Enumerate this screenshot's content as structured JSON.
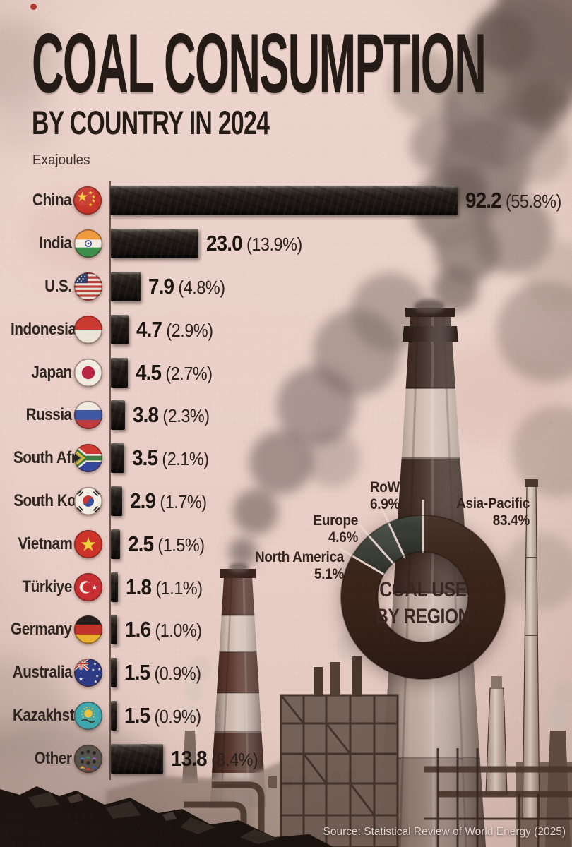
{
  "header": {
    "title": "COAL CONSUMPTION",
    "subtitle": "BY COUNTRY IN 2024",
    "units_label": "Exajoules"
  },
  "source": "Source: Statistical Review of World Energy (2025)",
  "colors": {
    "paper": "#e9cfc7",
    "ink": "#241b16",
    "bar_coal": "#1c1713",
    "separator": "#e8d6ce",
    "source_text": "#ded5cf"
  },
  "chart_data": [
    {
      "type": "bar",
      "orientation": "horizontal",
      "title": "Coal consumption by country in 2024",
      "xlabel": "Exajoules",
      "xmax": 92.2,
      "grid": false,
      "categories": [
        "China",
        "India",
        "U.S.",
        "Indonesia",
        "Japan",
        "Russia",
        "South Africa",
        "South Korea",
        "Vietnam",
        "Türkiye",
        "Germany",
        "Australia",
        "Kazakhstan",
        "Other"
      ],
      "values": [
        92.2,
        23.0,
        7.9,
        4.7,
        4.5,
        3.8,
        3.5,
        2.9,
        2.5,
        1.8,
        1.6,
        1.5,
        1.5,
        13.8
      ],
      "value_labels": [
        "92.2",
        "23.0",
        "7.9",
        "4.7",
        "4.5",
        "3.8",
        "3.5",
        "2.9",
        "2.5",
        "1.8",
        "1.6",
        "1.5",
        "1.5",
        "13.8"
      ],
      "pct_labels": [
        "(55.8%)",
        "(13.9%)",
        "(4.8%)",
        "(2.9%)",
        "(2.7%)",
        "(2.3%)",
        "(2.1%)",
        "(1.7%)",
        "(1.5%)",
        "(1.1%)",
        "(1.0%)",
        "(0.9%)",
        "(0.9%)",
        "(8.4%)"
      ],
      "flag_icons": [
        "flag-china-icon",
        "flag-india-icon",
        "flag-us-icon",
        "flag-indonesia-icon",
        "flag-japan-icon",
        "flag-russia-icon",
        "flag-south-africa-icon",
        "flag-south-korea-icon",
        "flag-vietnam-icon",
        "flag-turkiye-icon",
        "flag-germany-icon",
        "flag-australia-icon",
        "flag-kazakhstan-icon",
        "flag-other-icon"
      ]
    },
    {
      "type": "donut",
      "title_line1": "COAL USE",
      "title_line2": "BY REGION",
      "start_angle_deg": 0,
      "clockwise": true,
      "slices": [
        {
          "label": "Asia-Pacific",
          "pct": 83.4,
          "pct_label": "83.4%",
          "color": "#3a241a"
        },
        {
          "label": "North America",
          "pct": 5.1,
          "pct_label": "5.1%",
          "color": "#3c3f37"
        },
        {
          "label": "Europe",
          "pct": 4.6,
          "pct_label": "4.6%",
          "color": "#454a41"
        },
        {
          "label": "RoW",
          "pct": 6.9,
          "pct_label": "6.9%",
          "color": "#373b33"
        }
      ]
    }
  ]
}
